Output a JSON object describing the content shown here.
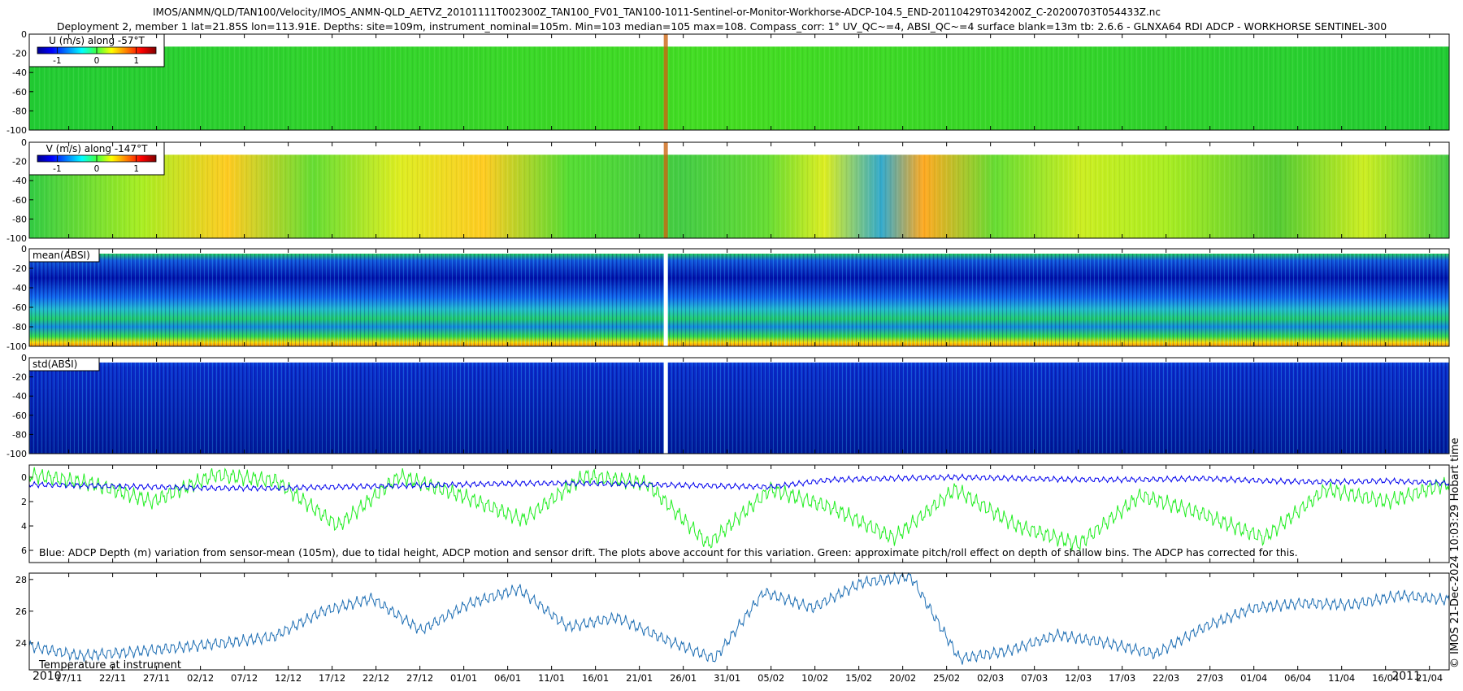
{
  "header": {
    "line1": "IMOS/ANMN/QLD/TAN100/Velocity/IMOS_ANMN-QLD_AETVZ_20101111T002300Z_TAN100_FV01_TAN100-1011-Sentinel-or-Monitor-Workhorse-ADCP-104.5_END-20110429T034200Z_C-20200703T054433Z.nc",
    "line2": "Deployment 2, member 1 lat=21.85S lon=113.91E. Depths: site=109m, instrument_nominal=105m. Min=103 median=105 max=108. Compass_corr: 1° UV_QC~=4, ABSI_QC~=4 surface blank=13m tb: 2.6.6 - GLNXA64 RDI ADCP - WORKHORSE SENTINEL-300"
  },
  "side_label": "© IMOS 21-Dec-2024 10:03:29 Hobart time",
  "colors": {
    "blue_line": "#0000ee",
    "green_line": "#22ee22",
    "temp_line": "#1f6fb4"
  },
  "chart_data": [
    {
      "type": "heatmap",
      "legend_title": "U (m/s) along -57°T",
      "colorbar_ticks": [
        "-1",
        "0",
        "1"
      ],
      "colorbar_range": [
        -1.5,
        1.5
      ],
      "ylim": [
        -100,
        0
      ],
      "yticks": [
        "0",
        "-20",
        "-40",
        "-60",
        "-80",
        "-100"
      ]
    },
    {
      "type": "heatmap",
      "legend_title": "V (m/s) along -147°T",
      "colorbar_ticks": [
        "-1",
        "0",
        "1"
      ],
      "colorbar_range": [
        -1.5,
        1.5
      ],
      "ylim": [
        -100,
        0
      ],
      "yticks": [
        "0",
        "-20",
        "-40",
        "-60",
        "-80",
        "-100"
      ]
    },
    {
      "type": "heatmap",
      "legend_title": "mean(ABSI)",
      "ylim": [
        -100,
        0
      ],
      "yticks": [
        "0",
        "-20",
        "-40",
        "-60",
        "-80",
        "-100"
      ]
    },
    {
      "type": "heatmap",
      "legend_title": "std(ABSI)",
      "ylim": [
        -100,
        0
      ],
      "yticks": [
        "0",
        "-20",
        "-40",
        "-60",
        "-80",
        "-100"
      ]
    },
    {
      "type": "line",
      "annotation": "Blue: ADCP Depth (m) variation from sensor-mean (105m), due to tidal height, ADCP motion and sensor drift. The plots above account for this variation. Green: approximate pitch/roll effect on depth of shallow bins. The ADCP has corrected for this.",
      "ylim": [
        -1,
        7
      ],
      "yticks": [
        "0",
        "2",
        "4",
        "6"
      ],
      "series": [
        {
          "values": [
            0.6,
            0.7,
            0.8,
            0.9,
            0.9,
            0.8,
            0.7,
            0.6,
            0.5,
            0.5,
            0.6,
            0.7,
            0.8,
            0.2,
            0.1,
            0.0,
            0.1,
            0.2,
            0.2,
            0.1,
            0.3,
            0.4,
            0.3,
            0.5
          ]
        },
        {
          "values": [
            -0.2,
            0.5,
            2.0,
            -0.2,
            0.3,
            4.0,
            -0.1,
            1.5,
            3.5,
            -0.1,
            0.5,
            5.5,
            1.0,
            2.5,
            5.0,
            1.0,
            4.0,
            5.5,
            1.5,
            3.0,
            5.0,
            1.0,
            2.0,
            0.5
          ]
        }
      ]
    },
    {
      "type": "line",
      "caption": "Temperature at instrument",
      "ylim": [
        22.3,
        28.4
      ],
      "yticks": [
        "24",
        "26",
        "28"
      ],
      "series": [
        {
          "values": [
            23.8,
            23.2,
            23.4,
            23.7,
            24.0,
            24.4,
            26.0,
            26.8,
            24.8,
            26.5,
            27.4,
            25.0,
            25.6,
            24.2,
            23.0,
            27.2,
            26.2,
            27.8,
            28.2,
            23.0,
            23.5,
            24.5,
            24.0,
            23.3,
            25.0,
            26.2,
            26.5,
            26.4,
            27.0,
            26.7
          ]
        }
      ]
    }
  ],
  "x_axis": {
    "start_label": "2010",
    "end_label": "2011",
    "ticks": [
      "17/11",
      "22/11",
      "27/11",
      "02/12",
      "07/12",
      "12/12",
      "17/12",
      "22/12",
      "27/12",
      "01/01",
      "06/01",
      "11/01",
      "16/01",
      "21/01",
      "26/01",
      "31/01",
      "05/02",
      "10/02",
      "15/02",
      "20/02",
      "25/02",
      "02/03",
      "07/03",
      "12/03",
      "17/03",
      "22/03",
      "27/03",
      "01/04",
      "06/04",
      "11/04",
      "16/04",
      "21/04"
    ]
  }
}
